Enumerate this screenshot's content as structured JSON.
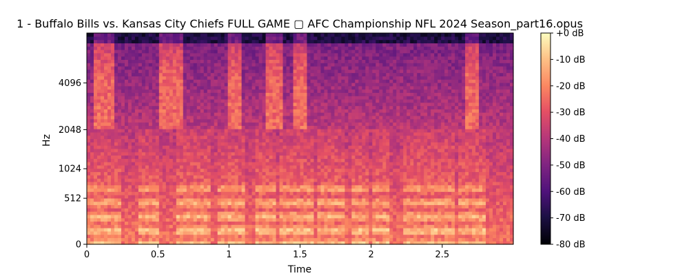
{
  "chart_data": {
    "type": "heatmap",
    "title": "1 - Buffalo Bills vs. Kansas City Chiefs FULL GAME ▢ AFC Championship NFL 2024 Season_part16.opus",
    "xlabel": "Time",
    "ylabel": "Hz",
    "x_range": [
      0,
      3.0
    ],
    "x_ticks": [
      0,
      0.5,
      1,
      1.5,
      2,
      2.5
    ],
    "x_tick_labels": [
      "0",
      "0.5",
      "1",
      "1.5",
      "2",
      "2.5"
    ],
    "y_scale": "mel",
    "y_range_hz": [
      0,
      8000
    ],
    "y_ticks": [
      0,
      512,
      1024,
      2048,
      4096
    ],
    "y_tick_labels": [
      "0",
      "512",
      "1024",
      "2048",
      "4096"
    ],
    "colorbar": {
      "range_db": [
        -80,
        0
      ],
      "ticks": [
        0,
        -10,
        -20,
        -30,
        -40,
        -50,
        -60,
        -70,
        -80
      ],
      "tick_labels": [
        "+0 dB",
        "-10 dB",
        "-20 dB",
        "-30 dB",
        "-40 dB",
        "-50 dB",
        "-60 dB",
        "-70 dB",
        "-80 dB"
      ],
      "colormap": "magma"
    },
    "grid": false,
    "harmonic_segments_s": [
      [
        0.0,
        0.25
      ],
      [
        0.36,
        0.52
      ],
      [
        0.62,
        0.88
      ],
      [
        0.92,
        1.12
      ],
      [
        1.18,
        1.32
      ],
      [
        1.36,
        1.6
      ],
      [
        1.62,
        1.82
      ],
      [
        1.86,
        1.98
      ],
      [
        2.0,
        2.12
      ],
      [
        2.22,
        2.58
      ],
      [
        2.62,
        2.8
      ]
    ],
    "bright_hf_bursts_s": [
      [
        0.05,
        0.2
      ],
      [
        0.5,
        0.67
      ],
      [
        1.0,
        1.1
      ],
      [
        1.26,
        1.38
      ],
      [
        1.46,
        1.56
      ],
      [
        2.66,
        2.76
      ]
    ]
  }
}
